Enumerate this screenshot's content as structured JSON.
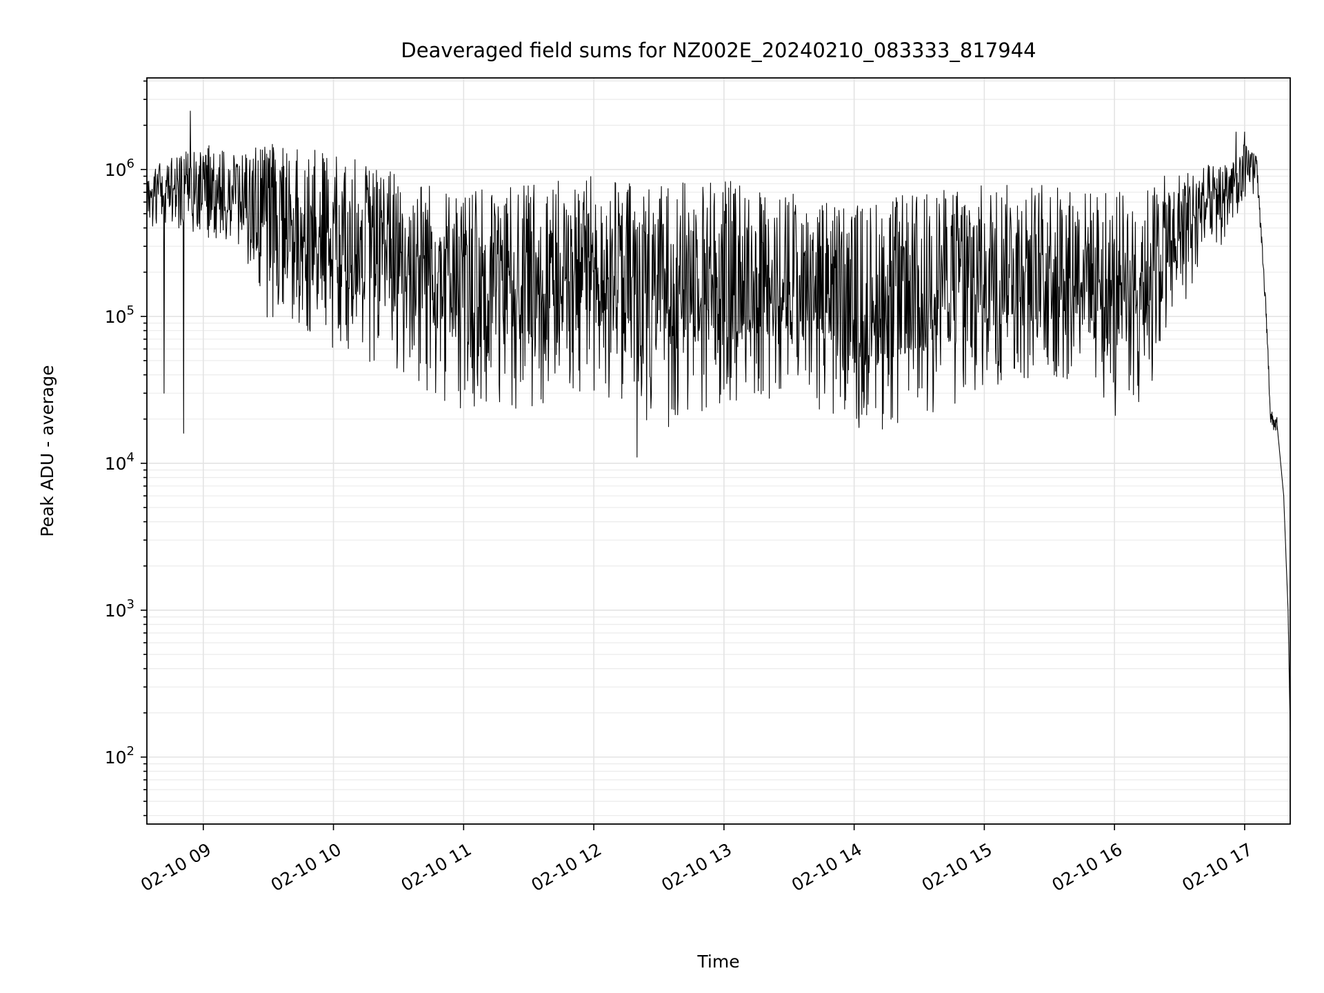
{
  "chart_data": {
    "type": "line",
    "title": "Deaveraged field sums for NZ002E_20240210_083333_817944",
    "xlabel": "Time",
    "ylabel": "Peak ADU - average",
    "yscale": "log",
    "ylim": [
      35,
      4200000
    ],
    "xlim": [
      "2024-02-10 08:34",
      "2024-02-10 17:21"
    ],
    "grid": true,
    "x_ticks": [
      {
        "value": "2024-02-10 09:00",
        "label": "02-10 09"
      },
      {
        "value": "2024-02-10 10:00",
        "label": "02-10 10"
      },
      {
        "value": "2024-02-10 11:00",
        "label": "02-10 11"
      },
      {
        "value": "2024-02-10 12:00",
        "label": "02-10 12"
      },
      {
        "value": "2024-02-10 13:00",
        "label": "02-10 13"
      },
      {
        "value": "2024-02-10 14:00",
        "label": "02-10 14"
      },
      {
        "value": "2024-02-10 15:00",
        "label": "02-10 15"
      },
      {
        "value": "2024-02-10 16:00",
        "label": "02-10 16"
      },
      {
        "value": "2024-02-10 17:00",
        "label": "02-10 17"
      }
    ],
    "y_ticks": [
      {
        "value": 100,
        "base": "10",
        "exp": "2"
      },
      {
        "value": 1000,
        "base": "10",
        "exp": "3"
      },
      {
        "value": 10000,
        "base": "10",
        "exp": "4"
      },
      {
        "value": 100000,
        "base": "10",
        "exp": "5"
      },
      {
        "value": 1000000,
        "base": "10",
        "exp": "6"
      }
    ],
    "series": [
      {
        "color": "#000000",
        "envelope": [
          {
            "x": "2024-02-10 08:34",
            "low": 350000,
            "high": 900000
          },
          {
            "x": "2024-02-10 08:45",
            "low": 400000,
            "high": 1300000
          },
          {
            "x": "2024-02-10 09:00",
            "low": 350000,
            "high": 1500000
          },
          {
            "x": "2024-02-10 09:15",
            "low": 300000,
            "high": 1300000
          },
          {
            "x": "2024-02-10 09:30",
            "low": 90000,
            "high": 1500000
          },
          {
            "x": "2024-02-10 10:00",
            "low": 60000,
            "high": 1300000
          },
          {
            "x": "2024-02-10 10:30",
            "low": 40000,
            "high": 1000000
          },
          {
            "x": "2024-02-10 11:00",
            "low": 22000,
            "high": 700000
          },
          {
            "x": "2024-02-10 11:30",
            "low": 22000,
            "high": 800000
          },
          {
            "x": "2024-02-10 12:00",
            "low": 30000,
            "high": 900000
          },
          {
            "x": "2024-02-10 12:30",
            "low": 17000,
            "high": 800000
          },
          {
            "x": "2024-02-10 13:00",
            "low": 22000,
            "high": 900000
          },
          {
            "x": "2024-02-10 13:30",
            "low": 30000,
            "high": 700000
          },
          {
            "x": "2024-02-10 14:00",
            "low": 16000,
            "high": 600000
          },
          {
            "x": "2024-02-10 14:30",
            "low": 18000,
            "high": 700000
          },
          {
            "x": "2024-02-10 15:00",
            "low": 30000,
            "high": 800000
          },
          {
            "x": "2024-02-10 15:30",
            "low": 35000,
            "high": 800000
          },
          {
            "x": "2024-02-10 16:00",
            "low": 20000,
            "high": 700000
          },
          {
            "x": "2024-02-10 16:15",
            "low": 28000,
            "high": 800000
          },
          {
            "x": "2024-02-10 16:30",
            "low": 90000,
            "high": 1000000
          },
          {
            "x": "2024-02-10 16:45",
            "low": 250000,
            "high": 1100000
          },
          {
            "x": "2024-02-10 17:00",
            "low": 500000,
            "high": 1500000
          },
          {
            "x": "2024-02-10 17:05",
            "low": 700000,
            "high": 1400000
          }
        ],
        "tail": [
          {
            "x": "2024-02-10 17:05",
            "y": 1400000
          },
          {
            "x": "2024-02-10 17:10",
            "y": 100000
          },
          {
            "x": "2024-02-10 17:12",
            "y": 20000
          },
          {
            "x": "2024-02-10 17:15",
            "y": 18000
          },
          {
            "x": "2024-02-10 17:18",
            "y": 6000
          },
          {
            "x": "2024-02-10 17:20",
            "y": 1000
          },
          {
            "x": "2024-02-10 17:21",
            "y": 150
          }
        ],
        "spikes": [
          {
            "x": "2024-02-10 08:54",
            "y": 2500000
          },
          {
            "x": "2024-02-10 08:42",
            "y": 30000
          },
          {
            "x": "2024-02-10 08:51",
            "y": 16000
          },
          {
            "x": "2024-02-10 12:20",
            "y": 11000
          },
          {
            "x": "2024-02-10 16:56",
            "y": 1800000
          },
          {
            "x": "2024-02-10 17:00",
            "y": 1800000
          }
        ]
      }
    ]
  }
}
